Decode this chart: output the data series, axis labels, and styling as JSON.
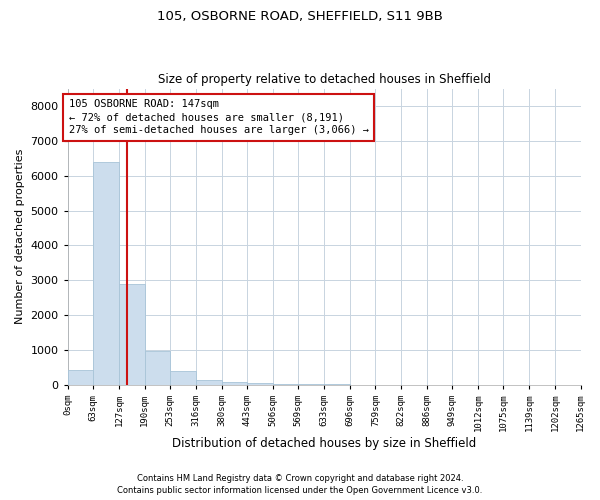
{
  "title1": "105, OSBORNE ROAD, SHEFFIELD, S11 9BB",
  "title2": "Size of property relative to detached houses in Sheffield",
  "xlabel": "Distribution of detached houses by size in Sheffield",
  "ylabel": "Number of detached properties",
  "bar_color": "#ccdded",
  "bar_edge_color": "#a8c4d8",
  "highlight_color": "#cc1111",
  "annotation_text": "105 OSBORNE ROAD: 147sqm\n← 72% of detached houses are smaller (8,191)\n27% of semi-detached houses are larger (3,066) →",
  "property_sqm": 147,
  "footnote1": "Contains HM Land Registry data © Crown copyright and database right 2024.",
  "footnote2": "Contains public sector information licensed under the Open Government Licence v3.0.",
  "bin_edges": [
    0,
    63,
    127,
    190,
    253,
    316,
    380,
    443,
    506,
    569,
    633,
    696,
    759,
    822,
    886,
    949,
    1012,
    1075,
    1139,
    1202,
    1265
  ],
  "bar_heights": [
    430,
    6380,
    2900,
    970,
    390,
    150,
    90,
    55,
    30,
    18,
    10,
    6,
    4,
    3,
    2,
    1,
    1,
    1,
    0,
    0
  ],
  "ylim": [
    0,
    8500
  ],
  "yticks": [
    0,
    1000,
    2000,
    3000,
    4000,
    5000,
    6000,
    7000,
    8000
  ],
  "background_color": "#ffffff",
  "grid_color": "#c8d4e0"
}
